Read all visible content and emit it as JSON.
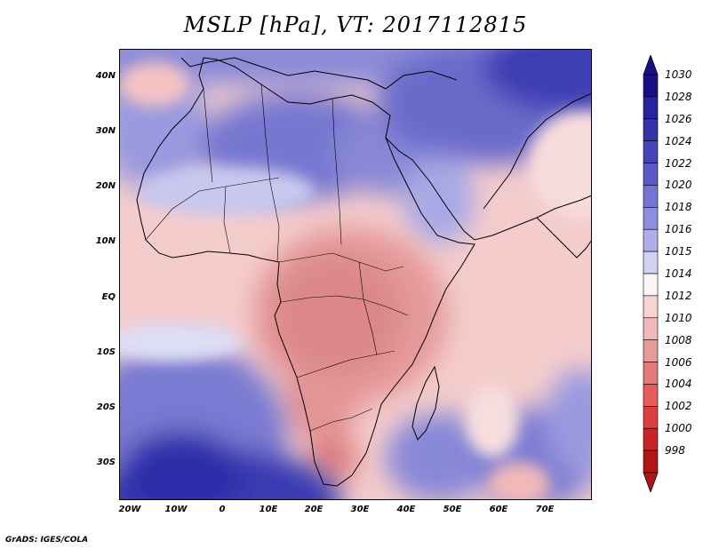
{
  "title": "MSLP [hPa], VT: 2017112815",
  "credit": "GrADS: IGES/COLA",
  "map": {
    "lat_ticks": [
      "40N",
      "30N",
      "20N",
      "10N",
      "EQ",
      "10S",
      "20S",
      "30S"
    ],
    "lon_ticks": [
      "20W",
      "10W",
      "0",
      "10E",
      "20E",
      "30E",
      "40E",
      "50E",
      "60E",
      "70E"
    ]
  },
  "colorbar": {
    "levels": [
      "1030",
      "1028",
      "1026",
      "1024",
      "1022",
      "1020",
      "1018",
      "1016",
      "1015",
      "1014",
      "1012",
      "1010",
      "1008",
      "1006",
      "1004",
      "1002",
      "1000",
      "998"
    ],
    "colors": [
      "#1b0f86",
      "#27259b",
      "#3434a8",
      "#4444b8",
      "#5a5ac6",
      "#7474d2",
      "#8e8edd",
      "#aeaee8",
      "#d2d2f2",
      "#fbf4f4",
      "#f6d4d4",
      "#f2b8b8",
      "#e79a9a",
      "#e27a7a",
      "#e55c5c",
      "#dd3f3f",
      "#c82626",
      "#b01818"
    ]
  }
}
